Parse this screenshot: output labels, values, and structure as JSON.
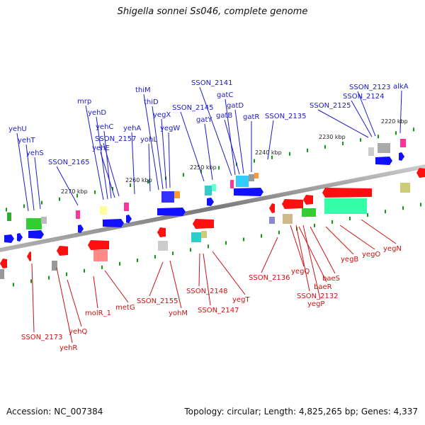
{
  "title": "Shigella sonnei Ss046, complete genome",
  "footer": {
    "accession": "Accession: NC_007384",
    "stats": "Topology: circular; Length: 4,825,265 bp; Genes: 4,337"
  },
  "colors": {
    "forward_label": "#1a1acc",
    "reverse_label": "#cc1111",
    "forward_arrow": "#1010ff",
    "reverse_arrow": "#ff1010",
    "backbone": "#888888",
    "tick": "#119911"
  },
  "scale_labels": [
    "2270 kbp",
    "2260 kbp",
    "2250 kbp",
    "2240 kbp",
    "2230 kbp",
    "2220 kbp"
  ],
  "forward_genes": [
    "yehU",
    "yehT",
    "yehS",
    "SSON_2165",
    "mrp",
    "yehD",
    "yehC",
    "yehE",
    "SSON_2157",
    "yehA",
    "yohL",
    "thiM",
    "thiD",
    "yegX",
    "yegW",
    "SSON_2145",
    "gatY",
    "SSON_2141",
    "gatC",
    "gatB",
    "gatD",
    "gatR",
    "SSON_2135",
    "SSON_2125",
    "SSON_2124",
    "SSON_2123",
    "alkA"
  ],
  "reverse_genes": [
    "SSON_2173",
    "yehR",
    "yehQ",
    "molR_1",
    "metG",
    "SSON_2155",
    "yohM",
    "SSON_2148",
    "SSON_2147",
    "yegT",
    "SSON_2136",
    "yegQ",
    "baeR",
    "SSON_2132",
    "yegP",
    "baeS",
    "yegB",
    "yegO",
    "yegN"
  ]
}
